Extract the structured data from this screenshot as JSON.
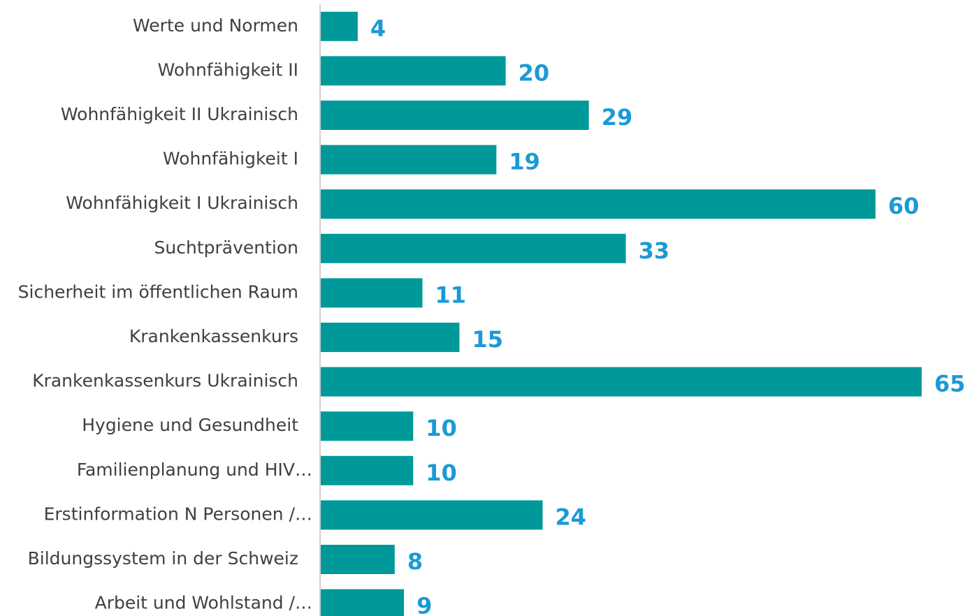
{
  "chart_data": {
    "type": "barh",
    "color": "#009999",
    "categories": [
      "Werte und Normen",
      "Wohnfähigkeit II",
      "Wohnfähigkeit II Ukrainisch",
      "Wohnfähigkeit I",
      "Wohnfähigkeit I Ukrainisch",
      "Suchtprävention",
      "Sicherheit im öffentlichen Raum",
      "Krankenkassenkurs",
      "Krankenkassenkurs Ukrainisch",
      "Hygiene und Gesundheit",
      "Familienplanung und HIV…",
      "Erstinformation N Personen /…",
      "Bildungssystem in der Schweiz",
      "Arbeit und Wohlstand /…"
    ],
    "values": [
      4,
      20,
      29,
      19,
      60,
      33,
      11,
      15,
      65,
      10,
      10,
      24,
      8,
      9
    ]
  }
}
